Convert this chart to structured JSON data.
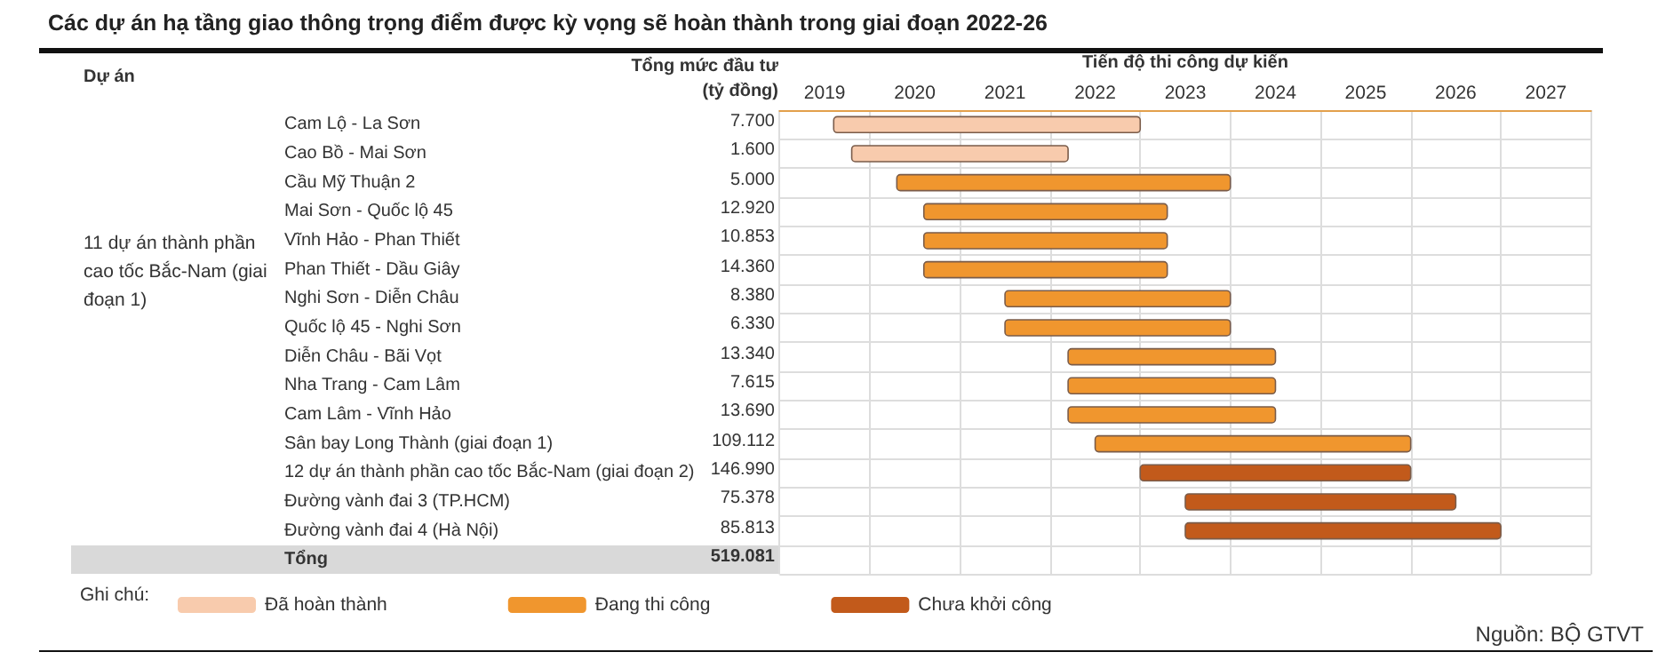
{
  "chart_data": {
    "type": "bar",
    "orientation": "horizontal",
    "title": "Các dự án hạ tầng giao thông trọng điểm được kỳ vọng sẽ hoàn thành trong giai đoạn 2022-26",
    "categories": [
      "Cam Lộ - La Sơn",
      "Cao Bồ - Mai Sơn",
      "Cầu Mỹ Thuận 2",
      "Mai Sơn - Quốc lộ 45",
      "Vĩnh Hảo - Phan Thiết",
      "Phan Thiết - Dầu Giây",
      "Nghi Sơn - Diễn Châu",
      "Quốc lộ 45 - Nghi Sơn",
      "Diễn Châu - Bãi Vọt",
      "Nha Trang - Cam Lâm",
      "Cam Lâm - Vĩnh Hảo",
      "Sân bay Long Thành (giai đoạn 1)",
      "12 dự án thành phần cao tốc Bắc-Nam (giai đoạn 2)",
      "Đường vành đai 3 (TP.HCM)",
      "Đường vành đai 4 (Hà Nội)",
      "Tổng"
    ],
    "series": [
      {
        "name": "Đã hoàn thành",
        "color": "#f8cbad",
        "base": [
          2019.6,
          2019.8,
          null,
          null,
          null,
          null,
          null,
          null,
          null,
          null,
          null,
          null,
          null,
          null,
          null,
          null
        ],
        "values": [
          3.4,
          2.4,
          null,
          null,
          null,
          null,
          null,
          null,
          null,
          null,
          null,
          null,
          null,
          null,
          null,
          null
        ]
      },
      {
        "name": "Đang thi công",
        "color": "#f0962e",
        "base": [
          null,
          null,
          2020.3,
          2020.6,
          2020.6,
          2020.6,
          2021.5,
          2021.5,
          2022.2,
          2022.2,
          2022.2,
          2022.5,
          null,
          null,
          null,
          null
        ],
        "values": [
          null,
          null,
          3.7,
          2.7,
          2.7,
          2.7,
          2.5,
          2.5,
          2.3,
          2.3,
          2.3,
          3.5,
          null,
          null,
          null,
          null
        ]
      },
      {
        "name": "Chưa khởi công",
        "color": "#c25a1b",
        "base": [
          null,
          null,
          null,
          null,
          null,
          null,
          null,
          null,
          null,
          null,
          null,
          null,
          2023.0,
          2023.5,
          2023.5,
          null
        ],
        "values": [
          null,
          null,
          null,
          null,
          null,
          null,
          null,
          null,
          null,
          null,
          null,
          null,
          3.0,
          3.0,
          3.5,
          null
        ]
      }
    ],
    "xlim": [
      2019,
      2028
    ],
    "xticks": [
      {
        "value": 2019.5,
        "label": "2019"
      },
      {
        "value": 2020.5,
        "label": "2020"
      },
      {
        "value": 2021.5,
        "label": "2021"
      },
      {
        "value": 2022.5,
        "label": "2022"
      },
      {
        "value": 2023.5,
        "label": "2023"
      },
      {
        "value": 2024.5,
        "label": "2024"
      },
      {
        "value": 2025.5,
        "label": "2025"
      },
      {
        "value": 2026.5,
        "label": "2026"
      },
      {
        "value": 2027.5,
        "label": "2027"
      }
    ],
    "grid": true,
    "legend": "bottom",
    "legend_title": "Ghi chú:",
    "annotations": [
      "Dự án",
      "Tổng mức đầu tư (tỷ đồng)",
      "Tiến độ thi công dự kiến",
      "11 dự án thành phần cao tốc Bắc-Nam (giai đoạn 1)",
      "Nguồn: BỘ GTVT",
      "7.700",
      "1.600",
      "5.000",
      "12.920",
      "10.853",
      "14.360",
      "8.380",
      "6.330",
      "13.340",
      "7.615",
      "13.690",
      "109.112",
      "146.990",
      "75.378",
      "85.813",
      "519.081"
    ]
  }
}
